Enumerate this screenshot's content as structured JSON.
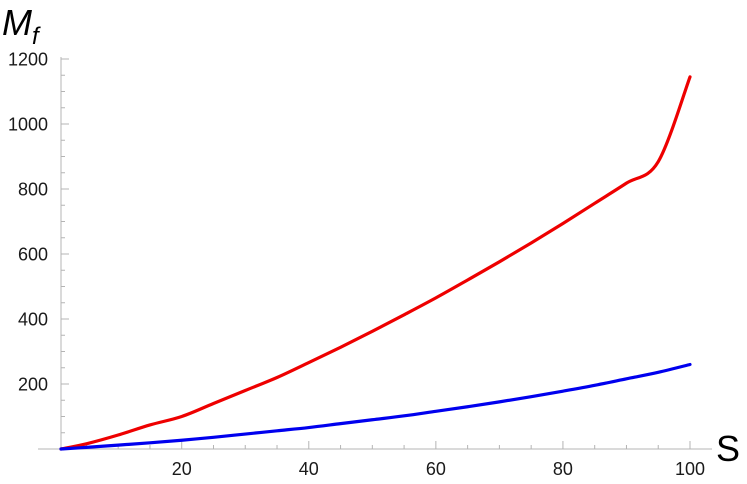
{
  "chart_data": {
    "type": "line",
    "xlabel": "S",
    "ylabel_main": "M",
    "ylabel_sub": "f",
    "xlim": [
      1,
      100
    ],
    "ylim": [
      0,
      1200
    ],
    "x_ticks": [
      20,
      40,
      60,
      80,
      100
    ],
    "y_ticks": [
      200,
      400,
      600,
      800,
      1000,
      1200
    ],
    "x_minor_step": 5,
    "y_minor_step": 50,
    "grid": false,
    "series": [
      {
        "color": "#ee0000",
        "x": [
          1,
          5,
          10,
          15,
          20,
          25,
          30,
          35,
          40,
          45,
          50,
          55,
          60,
          65,
          70,
          75,
          80,
          85,
          90,
          95,
          100
        ],
        "y": [
          0,
          16,
          43,
          74,
          100,
          140,
          180,
          220,
          266,
          313,
          362,
          413,
          465,
          520,
          576,
          634,
          694,
          756,
          818,
          884,
          1145
        ]
      },
      {
        "color": "#0000ee",
        "x": [
          1,
          5,
          10,
          15,
          20,
          25,
          30,
          35,
          40,
          45,
          50,
          55,
          60,
          65,
          70,
          75,
          80,
          85,
          90,
          95,
          100
        ],
        "y": [
          0,
          5,
          12,
          19,
          27,
          36,
          46,
          56,
          66,
          78,
          90,
          102,
          116,
          130,
          145,
          161,
          178,
          196,
          216,
          236,
          260
        ]
      }
    ]
  }
}
